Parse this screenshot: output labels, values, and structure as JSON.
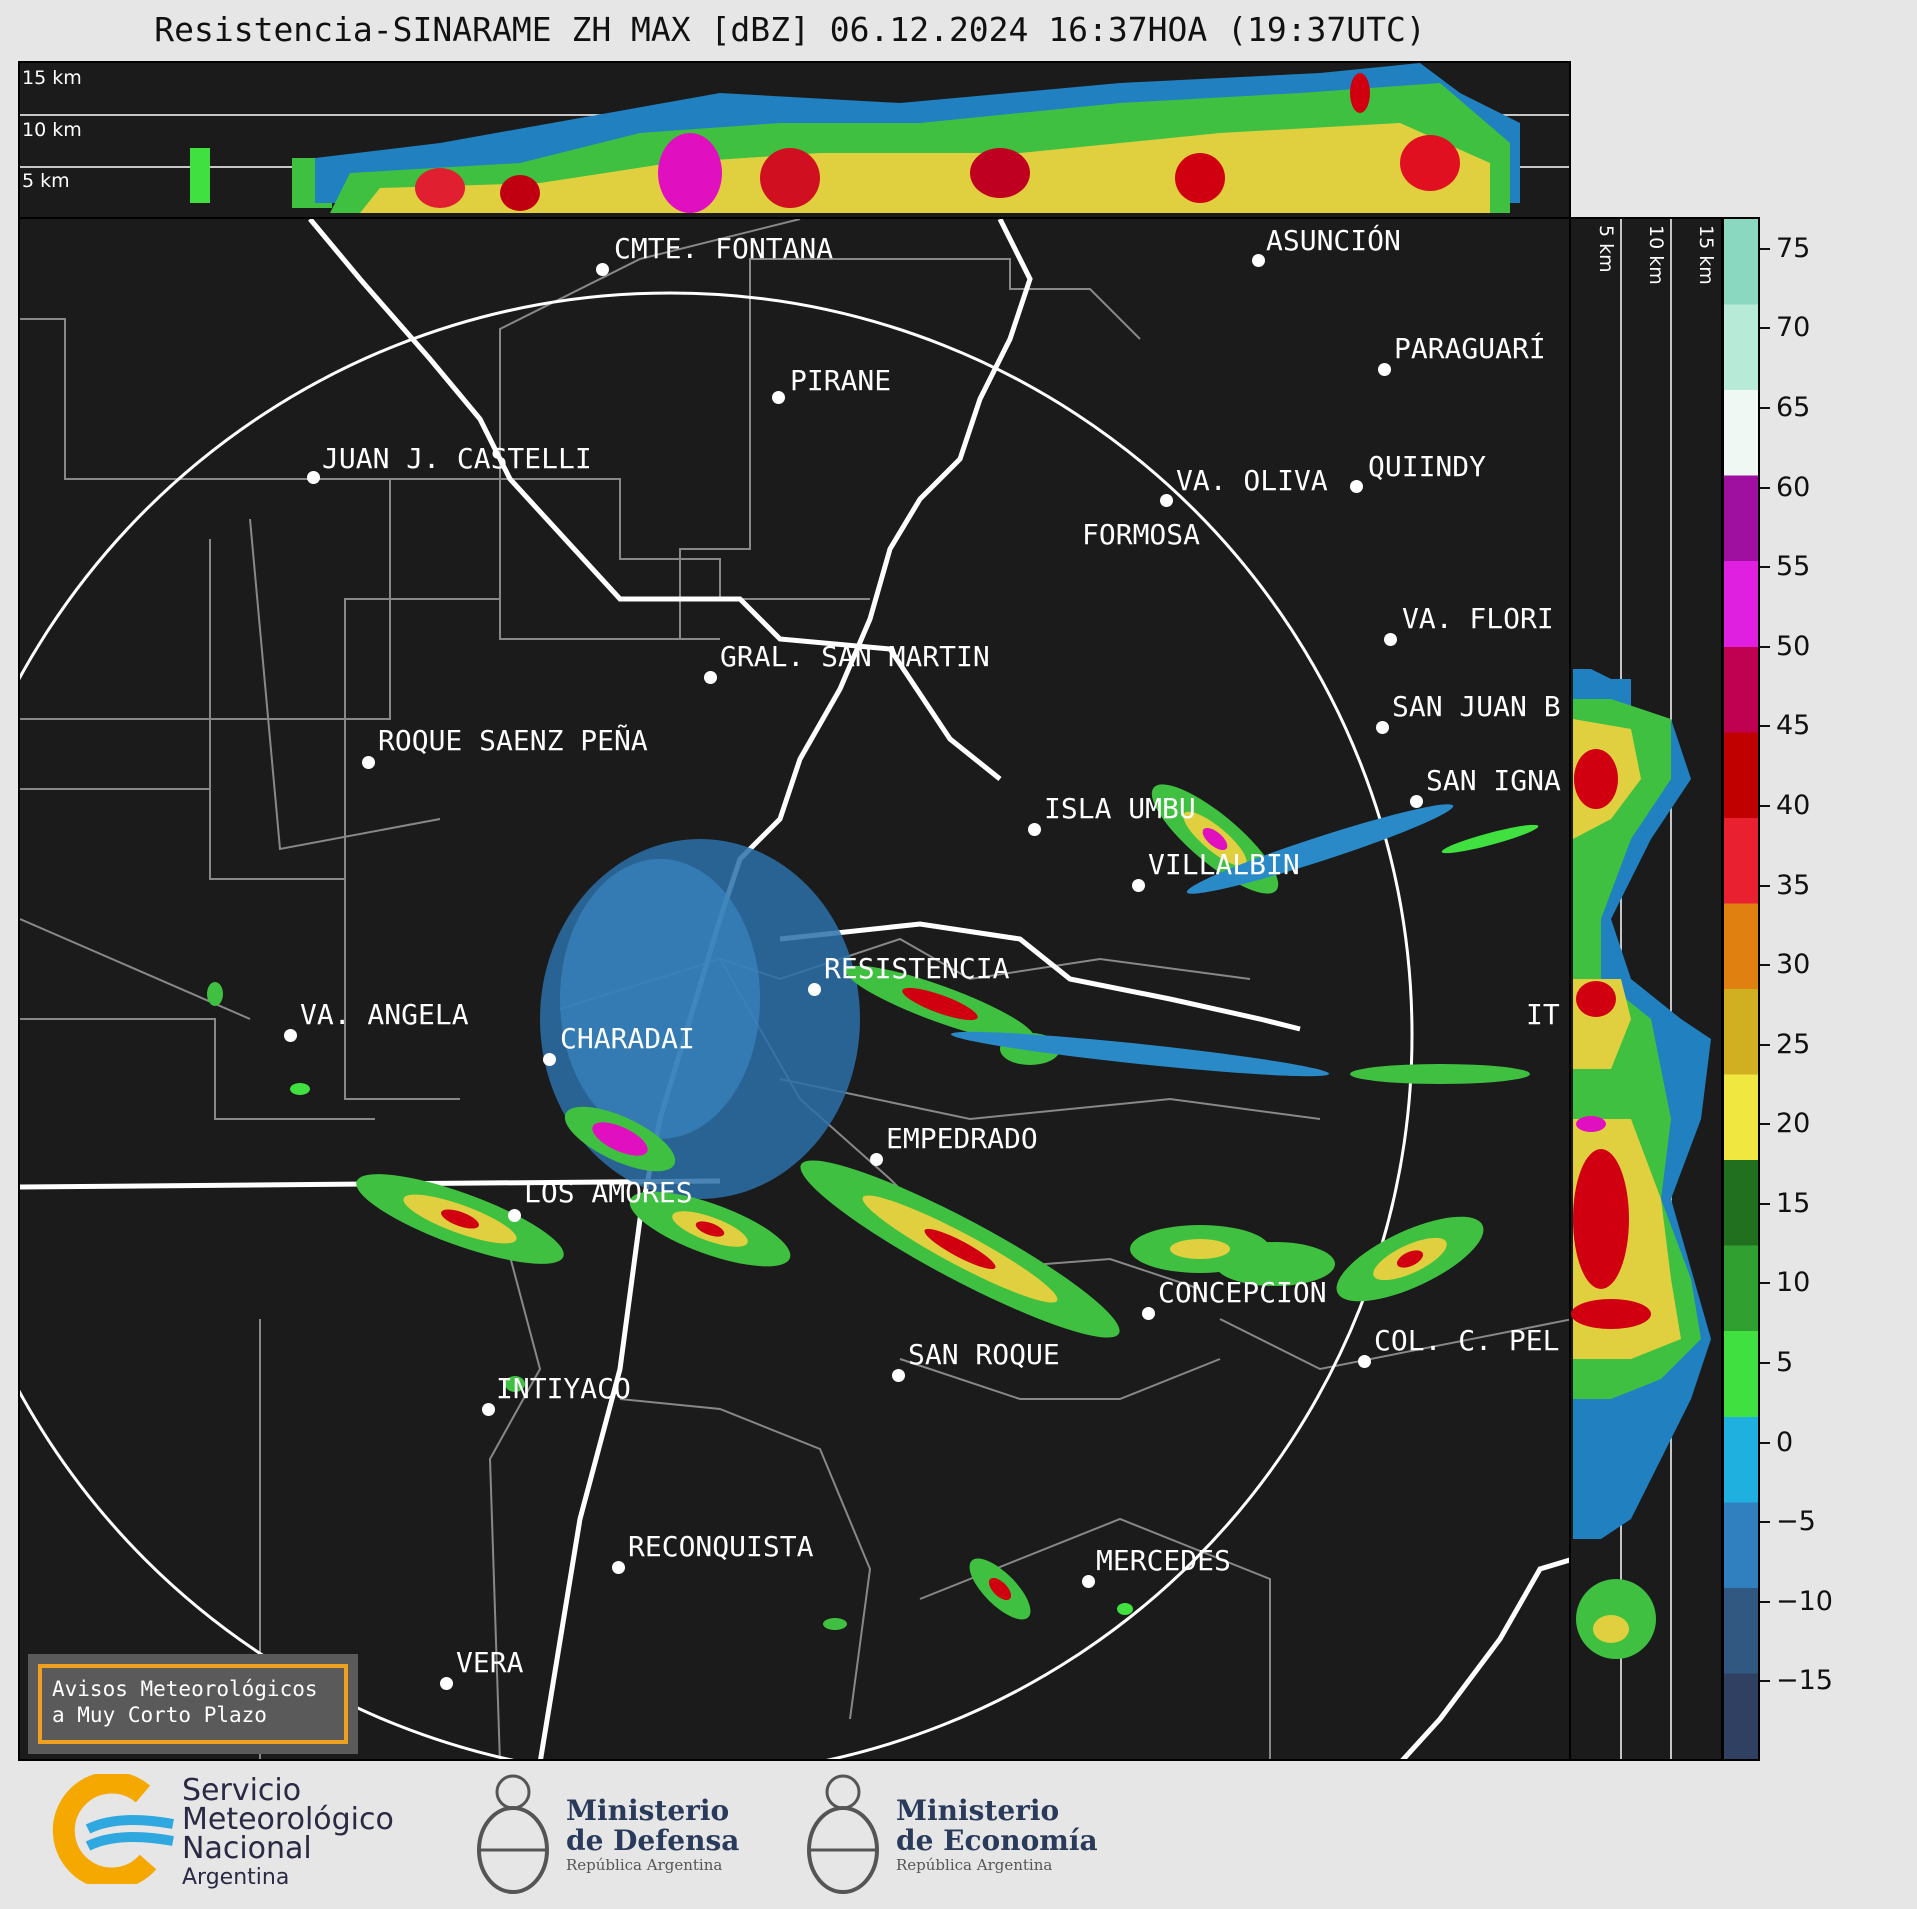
{
  "title": "Resistencia-SINARAME ZH MAX [dBZ] 06.12.2024 16:37HOA (19:37UTC)",
  "top_panel": {
    "height_labels": [
      "15 km",
      "10 km",
      "5 km"
    ]
  },
  "side_panel": {
    "height_labels": [
      "5 km",
      "10 km",
      "15 km"
    ]
  },
  "colorbar": {
    "ticks": [
      "75",
      "70",
      "65",
      "60",
      "55",
      "50",
      "45",
      "40",
      "35",
      "30",
      "25",
      "20",
      "15",
      "10",
      "5",
      "0",
      "−5",
      "−10",
      "−15"
    ],
    "range": [
      -20,
      77
    ],
    "colors": [
      "#8ad8c0",
      "#b8ead8",
      "#f0f8f4",
      "#a010a0",
      "#e020e0",
      "#c00050",
      "#c00000",
      "#e82030",
      "#e08010",
      "#d0b020",
      "#f0e840",
      "#207020",
      "#30a030",
      "#40e040",
      "#20b0e0",
      "#3080c0",
      "#305880",
      "#304060"
    ]
  },
  "cities": [
    {
      "name": "CMTE. FONTANA"
    },
    {
      "name": "ASUNCIÓN"
    },
    {
      "name": "PIRANE"
    },
    {
      "name": "PARAGUARÍ"
    },
    {
      "name": "JUAN J. CASTELLI"
    },
    {
      "name": "VA. OLIVA"
    },
    {
      "name": "QUIINDY"
    },
    {
      "name": "FORMOSA"
    },
    {
      "name": "VA. FLORI"
    },
    {
      "name": "GRAL. SAN MARTIN"
    },
    {
      "name": "SAN JUAN B"
    },
    {
      "name": "ROQUE SAENZ PEÑA"
    },
    {
      "name": "SAN IGNA"
    },
    {
      "name": "ISLA UMBU"
    },
    {
      "name": "VILLALBIN"
    },
    {
      "name": "RESISTENCIA"
    },
    {
      "name": "IT"
    },
    {
      "name": "VA. ANGELA"
    },
    {
      "name": "CHARADAI"
    },
    {
      "name": "EMPEDRADO"
    },
    {
      "name": "LOS AMORES"
    },
    {
      "name": "CONCEPCION"
    },
    {
      "name": "SAN ROQUE"
    },
    {
      "name": "COL. C. PEL"
    },
    {
      "name": "INTIYACO"
    },
    {
      "name": "RECONQUISTA"
    },
    {
      "name": "MERCEDES"
    },
    {
      "name": "VERA"
    }
  ],
  "alert_box": {
    "line1": "Avisos Meteorológicos",
    "line2": "a Muy Corto Plazo"
  },
  "logos": {
    "smn": {
      "line1": "Servicio",
      "line2": "Meteorológico",
      "line3": "Nacional",
      "line4": "Argentina"
    },
    "defensa": {
      "line1": "Ministerio",
      "line2": "de Defensa",
      "line3": "República Argentina"
    },
    "economia": {
      "line1": "Ministerio",
      "line2": "de Economía",
      "line3": "República Argentina"
    }
  }
}
